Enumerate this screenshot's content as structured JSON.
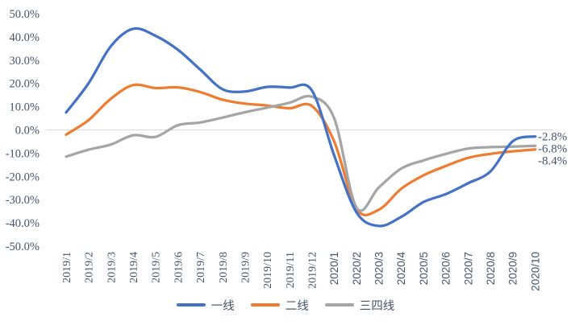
{
  "chart_data": {
    "type": "line",
    "title": "",
    "x": [
      "2019/1",
      "2019/2",
      "2019/3",
      "2019/4",
      "2019/5",
      "2019/6",
      "2019/7",
      "2019/8",
      "2019/9",
      "2019/10",
      "2019/11",
      "2019/12",
      "2020/1",
      "2020/2",
      "2020/3",
      "2020/4",
      "2020/5",
      "2020/6",
      "2020/7",
      "2020/8",
      "2020/9",
      "2020/10"
    ],
    "series": [
      {
        "key": "tier-1",
        "name": "一线",
        "color": "#4472C4",
        "end_label": "-2.8%",
        "values": [
          7.5,
          20.0,
          36.0,
          43.5,
          40.5,
          34.5,
          26.0,
          17.5,
          16.5,
          18.5,
          18.2,
          17.0,
          -11.0,
          -35.5,
          -41.3,
          -37.4,
          -31.0,
          -27.6,
          -22.9,
          -17.8,
          -4.8,
          -2.8
        ]
      },
      {
        "key": "tier-2",
        "name": "二线",
        "color": "#ED7D31",
        "end_label": "-8.4%",
        "values": [
          -2.0,
          4.2,
          13.4,
          19.3,
          18.0,
          18.3,
          16.3,
          13.0,
          11.3,
          10.5,
          9.3,
          10.3,
          -5.0,
          -34.0,
          -34.3,
          -25.3,
          -19.5,
          -15.5,
          -12.0,
          -10.3,
          -9.2,
          -8.4
        ]
      },
      {
        "key": "tier-3-4",
        "name": "三四线",
        "color": "#A5A5A5",
        "end_label": "-6.8%",
        "values": [
          -11.5,
          -8.5,
          -6.3,
          -2.3,
          -3.0,
          2.0,
          3.2,
          5.3,
          7.6,
          9.6,
          11.7,
          14.3,
          5.0,
          -33.5,
          -24.7,
          -16.6,
          -13.1,
          -10.3,
          -8.0,
          -7.4,
          -7.2,
          -6.8
        ]
      }
    ],
    "ylim": [
      -50,
      50
    ],
    "ytick_step": 10,
    "ytick_decimals": 1,
    "ytick_suffix": "%",
    "gridlines": "zero-line-only",
    "legend_position": "bottom",
    "axis_text_color": "#44546A",
    "zero_line_color": "#D9D9D9"
  }
}
